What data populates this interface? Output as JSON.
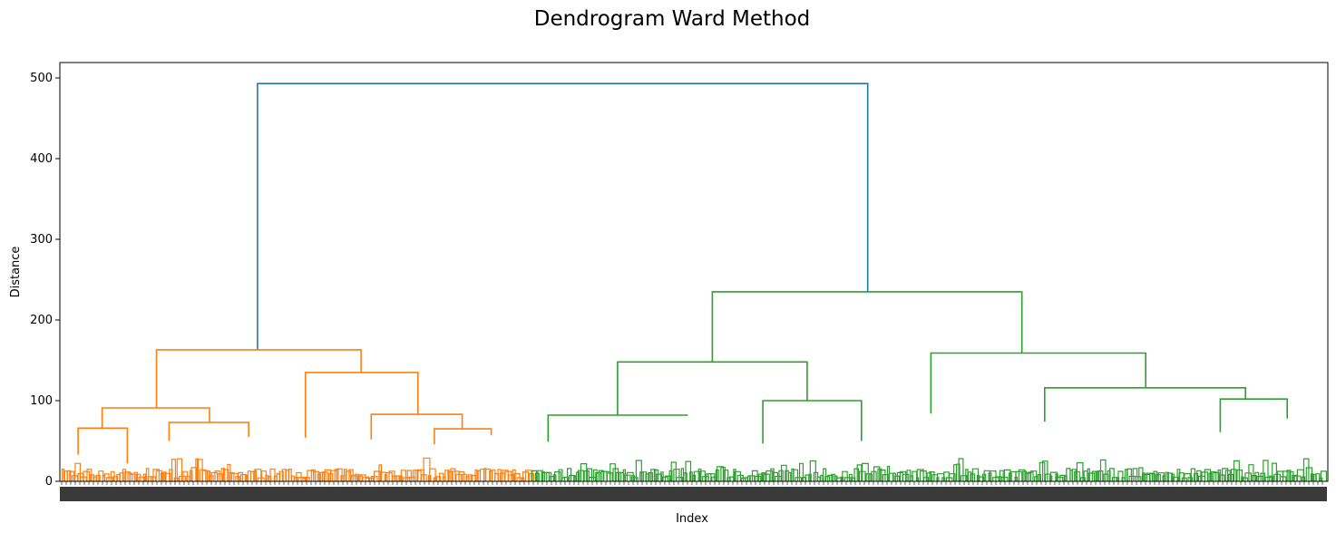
{
  "chart_data": {
    "type": "dendrogram",
    "title": "Dendrogram Ward Method",
    "xlabel": "Index",
    "ylabel": "Distance",
    "ylim": [
      0,
      520
    ],
    "yticks": [
      0,
      100,
      200,
      300,
      400,
      500
    ],
    "grid": false,
    "legend": "none",
    "colors": {
      "link_above_threshold": "#1f77b4",
      "cluster_1": "#ff7f0e",
      "cluster_2": "#2ca02c"
    },
    "clusters": [
      {
        "color": "#ff7f0e",
        "leaf_share": 0.373,
        "merge_height": 163
      },
      {
        "color": "#2ca02c",
        "leaf_share": 0.627,
        "merge_height": 235
      }
    ],
    "top_merge_height": 493,
    "links": [
      {
        "color": "#1f77b4",
        "x": [
          0.155,
          0.155,
          0.638,
          0.638
        ],
        "y": [
          163,
          493,
          493,
          235
        ]
      },
      {
        "color": "#ff7f0e",
        "x": [
          0.075,
          0.075,
          0.237,
          0.237
        ],
        "y": [
          91,
          163,
          163,
          135
        ]
      },
      {
        "color": "#ff7f0e",
        "x": [
          0.032,
          0.032,
          0.117,
          0.117
        ],
        "y": [
          66,
          91,
          91,
          73
        ]
      },
      {
        "color": "#ff7f0e",
        "x": [
          0.013,
          0.013,
          0.052,
          0.052
        ],
        "y": [
          33,
          66,
          66,
          22
        ]
      },
      {
        "color": "#ff7f0e",
        "x": [
          0.085,
          0.085,
          0.148,
          0.148
        ],
        "y": [
          50,
          73,
          73,
          55
        ]
      },
      {
        "color": "#ff7f0e",
        "x": [
          0.193,
          0.193,
          0.282,
          0.282
        ],
        "y": [
          54,
          135,
          135,
          83
        ]
      },
      {
        "color": "#ff7f0e",
        "x": [
          0.245,
          0.245,
          0.317,
          0.317
        ],
        "y": [
          52,
          83,
          83,
          65
        ]
      },
      {
        "color": "#ff7f0e",
        "x": [
          0.295,
          0.295,
          0.34,
          0.34
        ],
        "y": [
          46,
          65,
          65,
          57
        ]
      },
      {
        "color": "#2ca02c",
        "x": [
          0.515,
          0.515,
          0.76,
          0.76
        ],
        "y": [
          148,
          235,
          235,
          159
        ]
      },
      {
        "color": "#2ca02c",
        "x": [
          0.44,
          0.44,
          0.59,
          0.59
        ],
        "y": [
          82,
          148,
          148,
          100
        ]
      },
      {
        "color": "#2ca02c",
        "x": [
          0.385,
          0.385,
          0.495,
          0.495
        ],
        "y": [
          49,
          82,
          82,
          81
        ]
      },
      {
        "color": "#2ca02c",
        "x": [
          0.555,
          0.555,
          0.633,
          0.633
        ],
        "y": [
          47,
          100,
          100,
          50
        ]
      },
      {
        "color": "#2ca02c",
        "x": [
          0.688,
          0.688,
          0.858,
          0.858
        ],
        "y": [
          84,
          159,
          159,
          116
        ]
      },
      {
        "color": "#2ca02c",
        "x": [
          0.778,
          0.778,
          0.937,
          0.937
        ],
        "y": [
          74,
          116,
          116,
          102
        ]
      },
      {
        "color": "#2ca02c",
        "x": [
          0.917,
          0.917,
          0.97,
          0.97
        ],
        "y": [
          61,
          102,
          102,
          78
        ]
      }
    ]
  }
}
